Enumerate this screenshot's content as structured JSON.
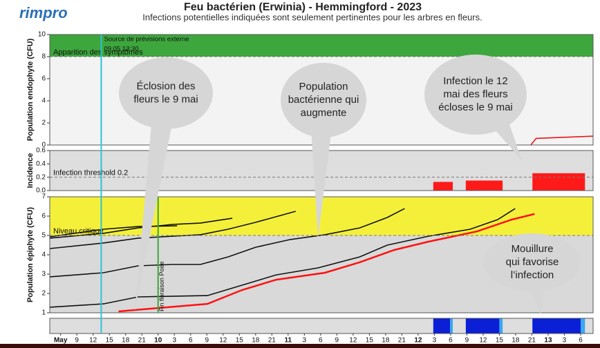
{
  "header": {
    "logo": "rimpro",
    "title": "Feu bactérien (Erwinia) - Hemmingford - 2023",
    "subtitle": "Infections potentielles indiquées sont seulement pertinentes pour les arbres en fleurs."
  },
  "chart_data": [
    {
      "type": "line",
      "ylabel": "Population endophyte (CFU)",
      "xlim": [
        4,
        104.3
      ],
      "ylim": [
        0,
        10
      ],
      "yticks": [
        0,
        2,
        4,
        6,
        8,
        10
      ],
      "threshold": {
        "value": 8,
        "label": "Apparition des symptômes"
      },
      "band_color": "#3da63d",
      "background": "#f3f3f3",
      "markers": [
        {
          "x": 13.5,
          "color": "#2cc3d6",
          "lines": [
            "Source de prévisions externe",
            "09.05 13:30"
          ],
          "span": "all"
        }
      ],
      "series": [
        {
          "color": "#e8161b",
          "x": [
            92.8,
            93.8,
            104.3
          ],
          "values": [
            0,
            0.6,
            0.8
          ]
        }
      ]
    },
    {
      "type": "bar",
      "ylabel": "Incidence",
      "xlim": [
        4,
        104.3
      ],
      "ylim": [
        0,
        0.6
      ],
      "yticks": [
        {
          "value": 0,
          "label": "0.0"
        },
        {
          "value": 0.2,
          "label": "0.2"
        },
        {
          "value": 0.4,
          "label": "0.4"
        },
        {
          "value": 0.6,
          "label": "0.6"
        }
      ],
      "threshold": {
        "value": 0.2,
        "label": "Infection threshold  0.2"
      },
      "background": "#dedede",
      "series": [
        {
          "color": "#ff1a1a",
          "x_start": [
            74.8,
            80.8,
            93.1
          ],
          "x_end": [
            78.4,
            87.6,
            102.8
          ],
          "values": [
            0.13,
            0.15,
            0.26
          ]
        }
      ]
    },
    {
      "type": "line",
      "ylabel": "Population épiphyte (CFU)",
      "xlim": [
        4,
        104.3
      ],
      "ylim": [
        1,
        7
      ],
      "yticks": [
        1,
        2,
        3,
        4,
        5,
        6,
        7
      ],
      "threshold": {
        "value": 5,
        "label": "Niveau critique"
      },
      "band_color": "#f4f03a",
      "background": "#d9d9d9",
      "markers": [
        {
          "x": 24,
          "color": "#3aa63a",
          "lines": [
            "Fin floraison Poire"
          ],
          "span": "panel"
        }
      ],
      "series": [
        {
          "color": "#111111",
          "x": [
            4.0,
            13.9,
            20.3,
            33.1,
            39.5,
            45.8,
            53.5,
            61.2,
            66.3,
            73.9,
            81.6,
            86.7,
            89.9
          ],
          "values": [
            1.29,
            1.46,
            1.82,
            1.89,
            2.43,
            2.96,
            3.32,
            3.89,
            4.5,
            4.96,
            5.32,
            5.82,
            6.39
          ]
        },
        {
          "color": "#111111",
          "x": [
            4.0,
            13.9,
            20.3,
            26.7,
            31.8,
            36.9,
            42.0,
            48.4,
            54.8,
            61.2,
            66.3,
            69.5
          ],
          "values": [
            2.86,
            3.07,
            3.43,
            3.5,
            3.5,
            3.89,
            4.39,
            4.79,
            5.04,
            5.39,
            5.93,
            6.39
          ]
        },
        {
          "color": "#111111",
          "x": [
            4.0,
            13.9,
            20.3,
            26.7,
            31.8,
            36.9,
            42.0,
            49.4
          ],
          "values": [
            4.32,
            4.61,
            4.86,
            4.96,
            5.04,
            5.32,
            5.68,
            6.25
          ]
        },
        {
          "color": "#111111",
          "x": [
            4.0,
            13.9,
            20.3,
            26.7,
            31.8,
            37.7
          ],
          "values": [
            4.86,
            5.11,
            5.39,
            5.57,
            5.64,
            5.89
          ]
        },
        {
          "color": "#111111",
          "x": [
            4.0,
            13.9,
            20.3,
            27.5
          ],
          "values": [
            4.93,
            5.32,
            5.46,
            5.5
          ]
        },
        {
          "color": "#ff1010",
          "x": [
            16.7,
            33.1,
            39.5,
            45.8,
            54.8,
            61.2,
            67.6,
            73.9,
            82.9,
            89.3,
            93.5
          ],
          "values": [
            1.07,
            1.46,
            2.18,
            2.71,
            3.07,
            3.61,
            4.25,
            4.68,
            5.21,
            5.82,
            6.11
          ]
        }
      ]
    },
    {
      "type": "bar",
      "xlim": [
        4,
        104.3
      ],
      "ylim": [
        0,
        1
      ],
      "background": "#dedede",
      "series": [
        {
          "color": "#0a1fd6",
          "x_start": [
            74.8,
            80.8,
            93.1
          ],
          "x_end": [
            77.9,
            87.0,
            102.0
          ],
          "values": [
            1,
            1,
            1
          ]
        },
        {
          "color": "#3aa8f0",
          "x_start": [
            77.9,
            87.0,
            102.0
          ],
          "x_end": [
            78.4,
            87.6,
            102.8
          ],
          "values": [
            1,
            1,
            1
          ]
        }
      ],
      "xticks": [
        {
          "value": 6,
          "label": "May"
        },
        9,
        12,
        15,
        18,
        21,
        {
          "value": 24,
          "label": "10"
        },
        {
          "value": 27,
          "label": "3"
        },
        {
          "value": 30,
          "label": "6"
        },
        {
          "value": 33,
          "label": "9"
        },
        {
          "value": 36,
          "label": "12"
        },
        {
          "value": 39,
          "label": "15"
        },
        {
          "value": 42,
          "label": "18"
        },
        {
          "value": 45,
          "label": "21"
        },
        {
          "value": 48,
          "label": "11"
        },
        {
          "value": 51,
          "label": "3"
        },
        {
          "value": 54,
          "label": "6"
        },
        {
          "value": 57,
          "label": "9"
        },
        {
          "value": 60,
          "label": "12"
        },
        {
          "value": 63,
          "label": "15"
        },
        {
          "value": 66,
          "label": "18"
        },
        {
          "value": 69,
          "label": "21"
        },
        {
          "value": 72,
          "label": "12"
        },
        {
          "value": 75,
          "label": "3"
        },
        {
          "value": 78,
          "label": "6"
        },
        {
          "value": 81,
          "label": "9"
        },
        {
          "value": 84,
          "label": "12"
        },
        {
          "value": 87,
          "label": "15"
        },
        {
          "value": 90,
          "label": "18"
        },
        {
          "value": 93,
          "label": "21"
        },
        {
          "value": 96,
          "label": "13"
        },
        {
          "value": 99,
          "label": "3"
        },
        {
          "value": 102,
          "label": "6"
        }
      ]
    }
  ],
  "callouts": [
    {
      "lines": [
        "Éclosion des",
        "fleurs le 9 mai"
      ]
    },
    {
      "lines": [
        "Population",
        "bactérienne qui",
        "augmente"
      ]
    },
    {
      "lines": [
        "Infection le 12",
        "mai des fleurs",
        "écloses le 9 mai"
      ]
    },
    {
      "lines": [
        "Mouillure",
        "qui favorise",
        "l’infection"
      ]
    }
  ]
}
